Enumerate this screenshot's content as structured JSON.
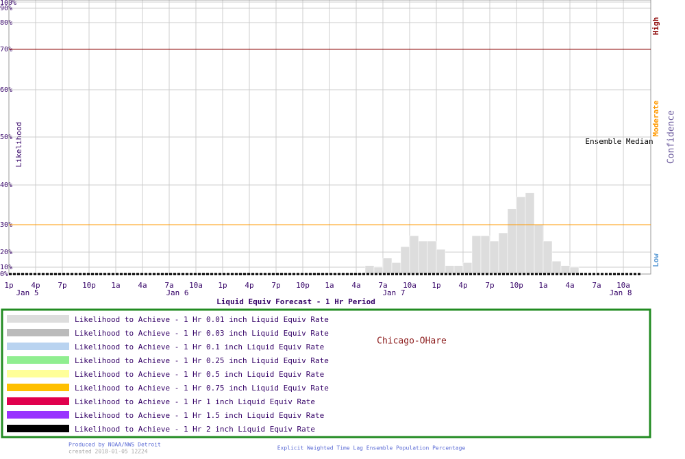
{
  "chart_data": {
    "type": "bar",
    "y_label": "Likelihood",
    "right_label": "Confidence",
    "confidence_levels": [
      {
        "label": "High",
        "color": "#8b0000"
      },
      {
        "label": "Moderate",
        "color": "#ff9900"
      },
      {
        "label": "Low",
        "color": "#5b9bd5"
      }
    ],
    "median_label": "Ensemble Median",
    "x_label": "Liquid Equiv Forecast -  1 Hr Period",
    "location": "Chicago-OHare",
    "credit": "Produced by NOAA/NWS Detroit",
    "created": "created 2018-01-05 12Z24",
    "footer": "Explicit Weighted Time Lag Ensemble Population Percentage",
    "categories": [
      "1p",
      null,
      null,
      "4p",
      null,
      null,
      "7p",
      null,
      null,
      "10p",
      null,
      null,
      "1a",
      null,
      null,
      "4a",
      null,
      null,
      "7a",
      null,
      null,
      "10a",
      null,
      null,
      "1p",
      null,
      null,
      "4p",
      null,
      null,
      "7p",
      null,
      null,
      "10p",
      null,
      null,
      "1a",
      null,
      null,
      "4a",
      null,
      null,
      "7a",
      null,
      null,
      "10a",
      null,
      null,
      "1p",
      null,
      null,
      "4p",
      null,
      null,
      "7p",
      null,
      null,
      "10p",
      null,
      null,
      "1a",
      null,
      null,
      "4a",
      null,
      null,
      "7a",
      null,
      null,
      "10a",
      null,
      null
    ],
    "dates": [
      "Jan 5",
      "Jan 6",
      "Jan 7",
      "Jan 8"
    ],
    "ylim": [
      0,
      100
    ],
    "yticks": [
      {
        "value": 0,
        "label": "0%"
      },
      {
        "value": 10,
        "label": "10%"
      },
      {
        "value": 20,
        "label": "20%"
      },
      {
        "value": 30,
        "label": "30%"
      },
      {
        "value": 40,
        "label": "40%"
      },
      {
        "value": 50,
        "label": "50%"
      },
      {
        "value": 60,
        "label": "60%"
      },
      {
        "value": 70,
        "label": "70%"
      },
      {
        "value": 80,
        "label": "80%"
      },
      {
        "value": 90,
        "label": "90%"
      },
      {
        "value": 100,
        "label": "100%"
      }
    ],
    "reference_lines": [
      {
        "value": 70,
        "color": "#8b0000"
      },
      {
        "value": 30,
        "color": "#ff9900"
      }
    ],
    "grid": true,
    "series": [
      {
        "name": "Likelihood to Achieve -  1 Hr 0.01 inch Liquid Equiv Rate",
        "color": "#dddddd",
        "values": [
          0,
          0,
          0,
          0,
          0,
          0,
          0,
          0,
          0,
          0,
          0,
          0,
          0,
          0,
          0,
          0,
          0,
          0,
          0,
          0,
          0,
          0,
          0,
          0,
          0,
          0,
          0,
          0,
          0,
          0,
          0,
          0,
          0,
          0,
          0,
          0,
          0,
          0,
          0,
          0,
          11,
          10,
          16,
          13,
          22,
          26,
          24,
          24,
          21,
          11,
          11,
          13,
          26,
          26,
          24,
          27,
          34,
          37,
          38,
          30,
          24,
          14,
          11,
          10,
          1,
          1,
          1,
          1,
          1,
          1,
          1,
          0
        ]
      },
      {
        "name": "Likelihood to Achieve -  1 Hr 0.03 inch Liquid Equiv Rate",
        "color": "#bbbbbb"
      },
      {
        "name": "Likelihood to Achieve -  1 Hr 0.1 inch Liquid Equiv Rate",
        "color": "#b9d3f0"
      },
      {
        "name": "Likelihood to Achieve -  1 Hr 0.25 inch Liquid Equiv Rate",
        "color": "#90ee90"
      },
      {
        "name": "Likelihood to Achieve -  1 Hr 0.5 inch Liquid Equiv Rate",
        "color": "#ffff99"
      },
      {
        "name": "Likelihood to Achieve -  1 Hr 0.75 inch Liquid Equiv Rate",
        "color": "#ffc000"
      },
      {
        "name": "Likelihood to Achieve -  1 Hr 1 inch Liquid Equiv Rate",
        "color": "#e0004d"
      },
      {
        "name": "Likelihood to Achieve -  1 Hr 1.5 inch Liquid Equiv Rate",
        "color": "#9933ff"
      },
      {
        "name": "Likelihood to Achieve -  1 Hr 2 inch Liquid Equiv Rate",
        "color": "#000000"
      }
    ]
  }
}
